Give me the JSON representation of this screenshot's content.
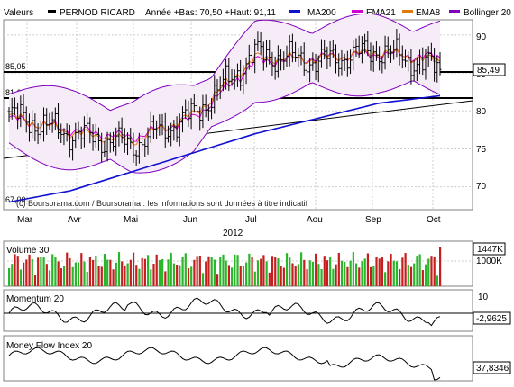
{
  "header": {
    "valeurs_label": "Valeurs",
    "title": "PERNOD RICARD",
    "range_text": "Année +Bas: 70,50 +Haut: 91,11",
    "legend": [
      {
        "label": "MA200",
        "color": "#1010d0"
      },
      {
        "label": "EMA21",
        "color": "#d000d0"
      },
      {
        "label": "EMA8",
        "color": "#e07a10"
      },
      {
        "label": "Bollinger 20",
        "color": "#8000c0"
      }
    ]
  },
  "price_panel": {
    "credit": "(c) Boursorama.com / Boursorama : les informations sont données à titre indicatif",
    "y_ticks": [
      "90",
      "85",
      "80",
      "75",
      "70"
    ],
    "last_price_label": "85,49",
    "level_labels": [
      {
        "label": "85,05",
        "value": 85.05
      },
      {
        "label": "81,66",
        "value": 81.66
      },
      {
        "label": "67,00",
        "value": 67.0
      }
    ],
    "x_labels": [
      "Mar",
      "Avr",
      "Mai",
      "Jun",
      "Jul",
      "Aou",
      "Sep",
      "Oct"
    ],
    "year_label": "2012"
  },
  "volume_panel": {
    "title": "Volume 30",
    "y_label": "1000K",
    "last_label": "1447K"
  },
  "momentum_panel": {
    "title": "Momentum 20",
    "y_label": "10",
    "last_label": "-2,9625"
  },
  "mfi_panel": {
    "title": "Money Flow Index 20",
    "last_label": "37,8346"
  },
  "chart_data": [
    {
      "type": "line",
      "title": "PERNOD RICARD",
      "ylim": [
        67,
        92
      ],
      "x": [
        "Mar",
        "Avr",
        "Mai",
        "Jun",
        "Jul",
        "Aou",
        "Sep",
        "Oct"
      ],
      "series": [
        {
          "name": "PERNOD RICARD",
          "values": [
            79.5,
            77.0,
            75.5,
            79.5,
            87.5,
            86.5,
            88.0,
            85.49
          ]
        },
        {
          "name": "MA200",
          "values": [
            68.0,
            69.5,
            72.0,
            74.5,
            77.0,
            79.0,
            81.0,
            82.0
          ]
        },
        {
          "name": "EMA21",
          "values": [
            79.0,
            77.5,
            76.5,
            79.0,
            86.5,
            87.0,
            87.5,
            87.0
          ]
        },
        {
          "name": "EMA8",
          "values": [
            79.3,
            77.2,
            76.0,
            79.5,
            87.0,
            86.8,
            87.8,
            86.5
          ]
        }
      ]
    },
    {
      "type": "bar",
      "title": "Volume 30",
      "y_label": "1000K",
      "last_value": "1447K"
    },
    {
      "type": "line",
      "title": "Momentum 20",
      "last_value": -2.9625
    },
    {
      "type": "line",
      "title": "Money Flow Index 20",
      "last_value": 37.8346
    }
  ]
}
